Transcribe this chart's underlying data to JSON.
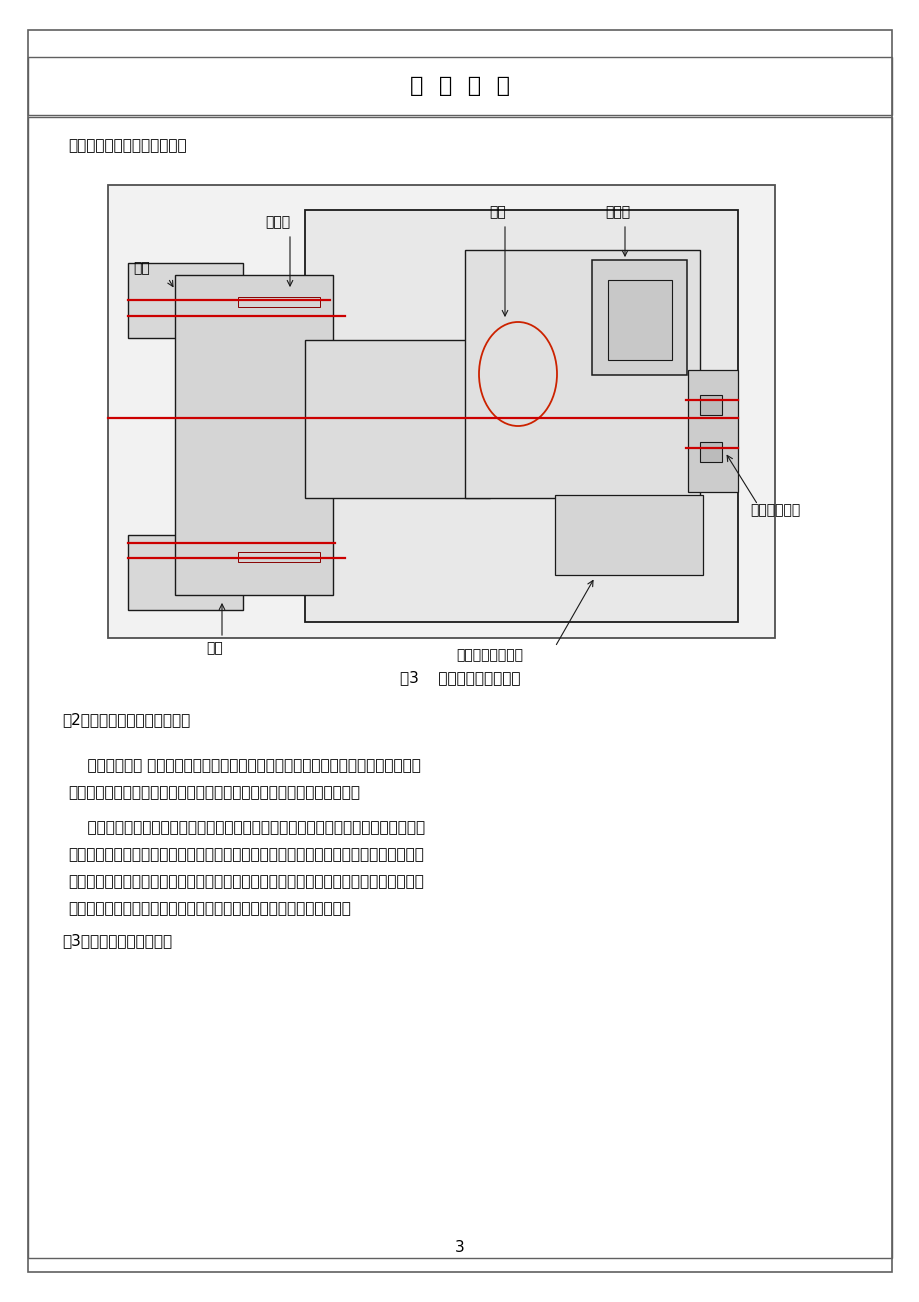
{
  "page_bg": "#ffffff",
  "outer_border_color": "#808080",
  "title": "开  题  报  告",
  "subtitle_text": "下图为液压驱动回转刀架图：",
  "fig_caption": "图3    液压驱动回转刀架图",
  "section2": "（2）控制部分及液压系统设计",
  "p1l1": "    其工作过程是 当数控装置发出换刀指令以后，液压油进入液压油缸的右腔，通过活",
  "p1l2": "塞推动主轴使刀盘左移，使定位端齿盘脱离啮合状态，为转位做好准备。",
  "p2l1": "    当齿盘处于完全脱开位置时，啮合状态行程开关发出转位信号，电机开始带着蜗杆转",
  "p2l2": "动，蜗杆带动蜗轮旋转使刀盘旋转任意个工位。当刀盘旋转到预定位置时，控制系统发出",
  "p2l3": "信号时电机停止运动，蜗轮停止运动，刀架处于预定位置。于此同时液压缸左腔进油，通",
  "p2l4": "过活塞将主轴和刀盘拉回，端齿盘啮合，刀盘完成精定位和夹紧动作。",
  "section3": "（3）系统工作程序流程图",
  "page_num": "3",
  "text_color": "#000000",
  "red_line_color": "#cc0000",
  "label_端齿盘": "端齿盘",
  "label_蜗轮": "蜗轮",
  "label_液压缸": "液压缸",
  "label_刀架": "刀架",
  "label_主轴": "主轴",
  "label_计数行程开关": "计数行程开关",
  "label_啮合状态行程开关": "啮合状态行程开关"
}
